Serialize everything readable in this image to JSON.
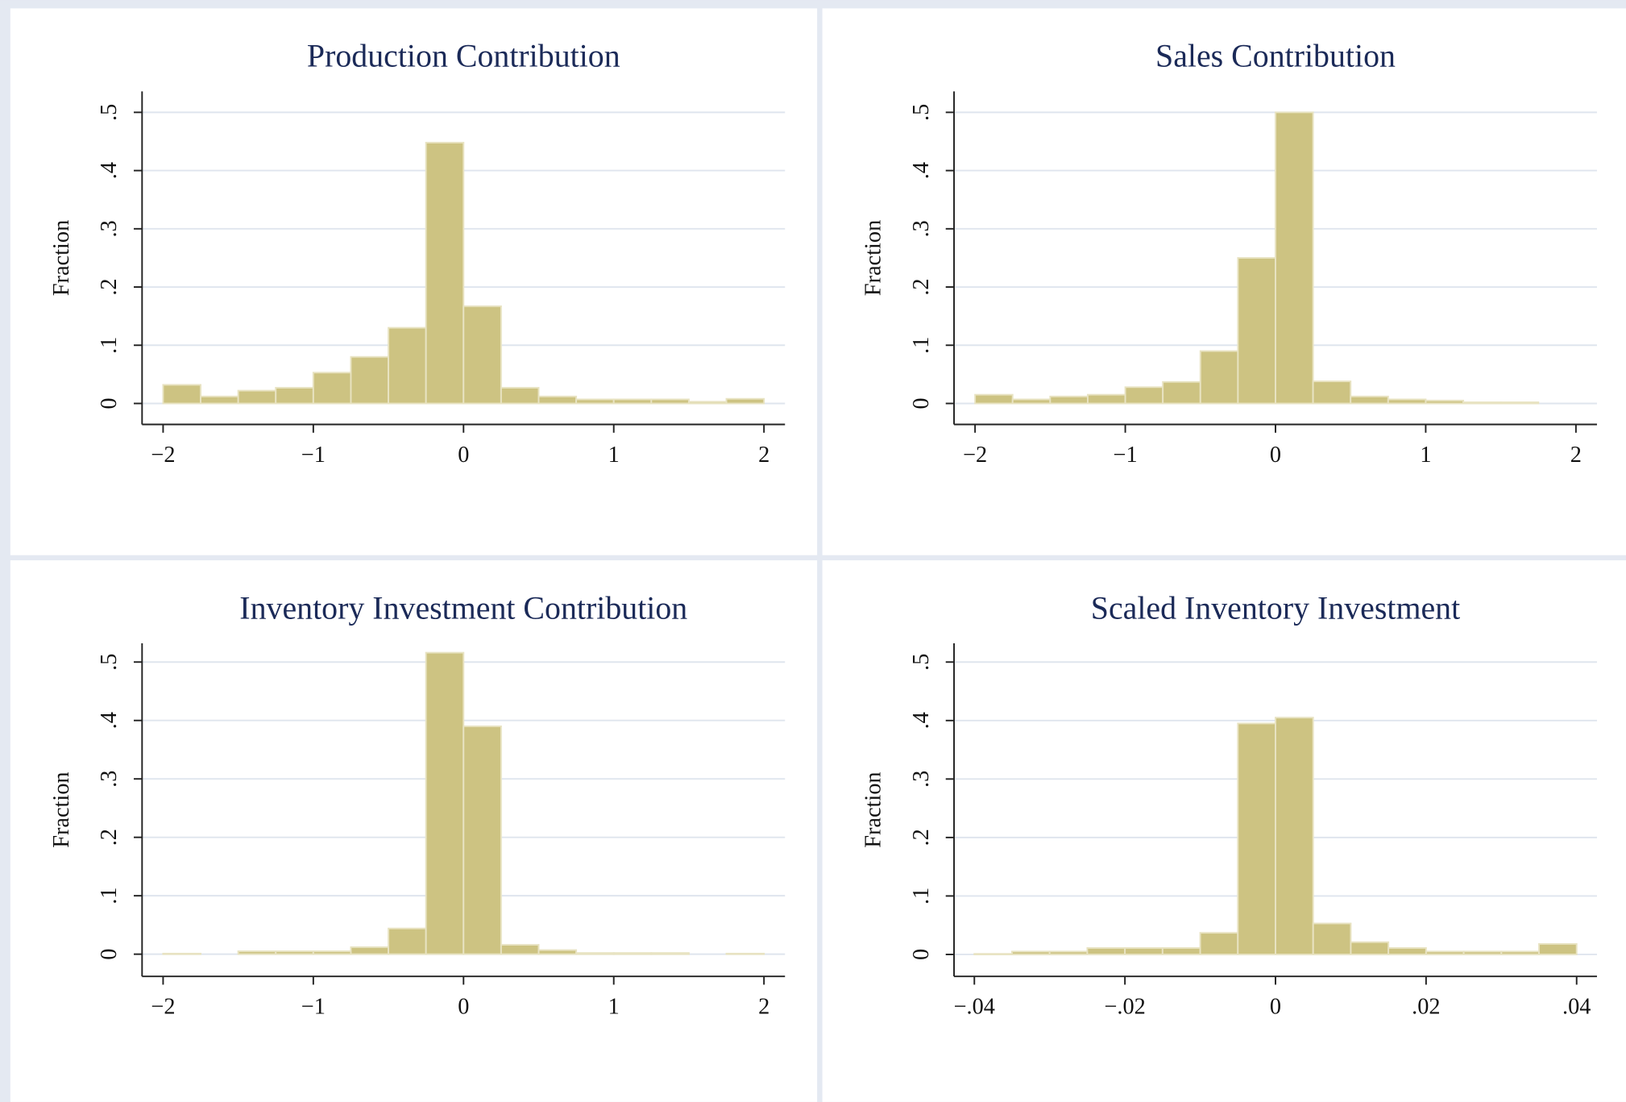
{
  "chart_data": [
    {
      "type": "histogram",
      "title": "Production Contribution",
      "y_label": "Fraction",
      "color": "#cdc382",
      "grid": true,
      "bins": [
        -2,
        -1.75,
        -1.5,
        -1.25,
        -1,
        -0.75,
        -0.5,
        -0.25,
        0,
        0.25,
        0.5,
        0.75,
        1,
        1.25,
        1.5,
        1.75,
        2
      ],
      "values": [
        0.032,
        0.012,
        0.022,
        0.027,
        0.053,
        0.08,
        0.13,
        0.448,
        0.167,
        0.027,
        0.012,
        0.007,
        0.007,
        0.007,
        0.003,
        0.008
      ],
      "xlim": [
        -2.14,
        2.14
      ],
      "ylim": [
        -0.036,
        0.536
      ],
      "xticks": [
        {
          "value": -2,
          "label": "−2"
        },
        {
          "value": -1,
          "label": "−1"
        },
        0,
        1,
        2
      ],
      "yticks": [
        0,
        {
          "value": 0.1,
          "label": ".1"
        },
        {
          "value": 0.2,
          "label": ".2"
        },
        {
          "value": 0.3,
          "label": ".3"
        },
        {
          "value": 0.4,
          "label": ".4"
        },
        {
          "value": 0.5,
          "label": ".5"
        }
      ]
    },
    {
      "type": "histogram",
      "title": "Sales Contribution",
      "y_label": "Fraction",
      "color": "#cdc382",
      "grid": true,
      "bins": [
        -2,
        -1.75,
        -1.5,
        -1.25,
        -1,
        -0.75,
        -0.5,
        -0.25,
        0,
        0.25,
        0.5,
        0.75,
        1,
        1.25,
        1.5,
        1.75,
        2
      ],
      "values": [
        0.015,
        0.007,
        0.012,
        0.015,
        0.028,
        0.037,
        0.09,
        0.25,
        0.5,
        0.038,
        0.012,
        0.007,
        0.005,
        0.002,
        0.002,
        0
      ],
      "xlim": [
        -2.14,
        2.14
      ],
      "ylim": [
        -0.036,
        0.536
      ],
      "xticks": [
        {
          "value": -2,
          "label": "−2"
        },
        {
          "value": -1,
          "label": "−1"
        },
        0,
        1,
        2
      ],
      "yticks": [
        0,
        {
          "value": 0.1,
          "label": ".1"
        },
        {
          "value": 0.2,
          "label": ".2"
        },
        {
          "value": 0.3,
          "label": ".3"
        },
        {
          "value": 0.4,
          "label": ".4"
        },
        {
          "value": 0.5,
          "label": ".5"
        }
      ]
    },
    {
      "type": "histogram",
      "title": "Inventory Investment Contribution",
      "y_label": "Fraction",
      "color": "#cdc382",
      "grid": true,
      "bins": [
        -2,
        -1.75,
        -1.5,
        -1.25,
        -1,
        -0.75,
        -0.5,
        -0.25,
        0,
        0.25,
        0.5,
        0.75,
        1,
        1.25,
        1.5,
        1.75,
        2
      ],
      "values": [
        0.001,
        0,
        0.005,
        0.005,
        0.005,
        0.012,
        0.044,
        0.516,
        0.39,
        0.016,
        0.007,
        0.002,
        0.002,
        0.002,
        0,
        0.001
      ],
      "xlim": [
        -2.14,
        2.14
      ],
      "ylim": [
        -0.038,
        0.532
      ],
      "xticks": [
        {
          "value": -2,
          "label": "−2"
        },
        {
          "value": -1,
          "label": "−1"
        },
        0,
        1,
        2
      ],
      "yticks": [
        0,
        {
          "value": 0.1,
          "label": ".1"
        },
        {
          "value": 0.2,
          "label": ".2"
        },
        {
          "value": 0.3,
          "label": ".3"
        },
        {
          "value": 0.4,
          "label": ".4"
        },
        {
          "value": 0.5,
          "label": ".5"
        }
      ]
    },
    {
      "type": "histogram",
      "title": "Scaled Inventory Investment",
      "y_label": "Fraction",
      "color": "#cdc382",
      "grid": true,
      "bins": [
        -0.04,
        -0.035,
        -0.03,
        -0.025,
        -0.02,
        -0.015,
        -0.01,
        -0.005,
        0,
        0.005,
        0.01,
        0.015,
        0.02,
        0.025,
        0.03,
        0.035,
        0.04
      ],
      "values": [
        0.001,
        0.005,
        0.005,
        0.011,
        0.011,
        0.011,
        0.037,
        0.395,
        0.405,
        0.053,
        0.021,
        0.011,
        0.005,
        0.005,
        0.005,
        0.018
      ],
      "xlim": [
        -0.0427,
        0.0427
      ],
      "ylim": [
        -0.0375,
        0.532
      ],
      "xticks": [
        {
          "value": -0.04,
          "label": "−.04"
        },
        {
          "value": -0.02,
          "label": "−.02"
        },
        0,
        {
          "value": 0.02,
          "label": ".02"
        },
        {
          "value": 0.04,
          "label": ".04"
        }
      ],
      "yticks": [
        0,
        {
          "value": 0.1,
          "label": ".1"
        },
        {
          "value": 0.2,
          "label": ".2"
        },
        {
          "value": 0.3,
          "label": ".3"
        },
        {
          "value": 0.4,
          "label": ".4"
        },
        {
          "value": 0.5,
          "label": ".5"
        }
      ]
    }
  ]
}
